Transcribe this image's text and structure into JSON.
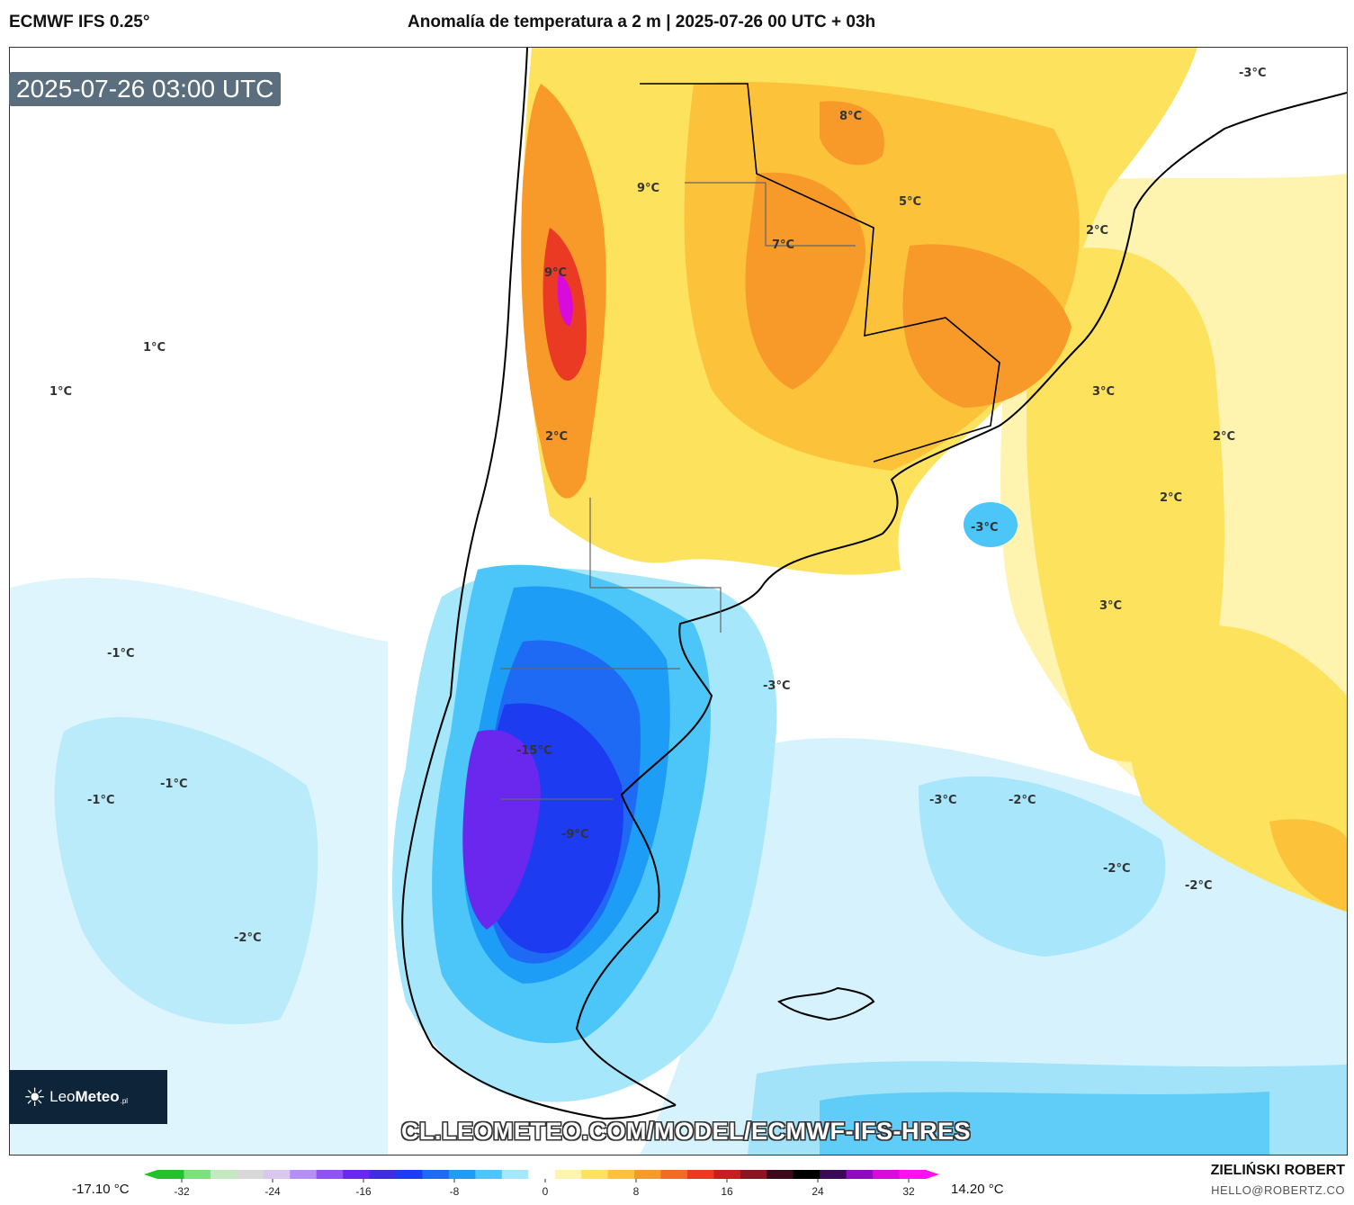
{
  "header": {
    "model": "ECMWF IFS 0.25°",
    "title": "Anomalía de temperatura a 2 m | 2025-07-26 00 UTC + 03h"
  },
  "map": {
    "valid_time": "2025-07-26 03:00 UTC",
    "labels": [
      "8°C",
      "9°C",
      "5°C",
      "7°C",
      "2°C",
      "9°C",
      "1°C",
      "1°C",
      "3°C",
      "2°C",
      "2°C",
      "2°C",
      "-3°C",
      "-3°C",
      "3°C",
      "-1°C",
      "-3°C",
      "-15°C",
      "-1°C",
      "-1°C",
      "-3°C",
      "-2°C",
      "-9°C",
      "-2°C",
      "-2°C",
      "-2°C"
    ]
  },
  "watermark": {
    "url": "CL.LEOMETEO.COM/MODEL/ECMWF-IFS-HRES",
    "logo_text_light": "Leo",
    "logo_text_bold": "Meteo",
    "logo_tld": ".pl"
  },
  "colorbar": {
    "min_label": "-17.10 °C",
    "max_label": "14.20 °C",
    "ticks": [
      "-32",
      "-24",
      "-16",
      "-8",
      "0",
      "8",
      "16",
      "24",
      "32"
    ],
    "colors": [
      "#22c22a",
      "#7ee07d",
      "#c4e8c0",
      "#d8d8d8",
      "#d9c8ee",
      "#b690f0",
      "#8f52f5",
      "#6a28ef",
      "#3f2de0",
      "#1d3bf0",
      "#1f6af4",
      "#1e9df7",
      "#4cc6f8",
      "#a6e7fb",
      "#ffffff",
      "#fff3b0",
      "#fde25e",
      "#fbc23a",
      "#f89a2a",
      "#f46a22",
      "#ea3a24",
      "#c81e22",
      "#8c1522",
      "#3a0a1a",
      "#000000",
      "#3a0a55",
      "#8f0ac0",
      "#d80ade",
      "#ff10f0"
    ]
  },
  "credit": {
    "author": "ZIELIŃSKI ROBERT",
    "email": "HELLO@ROBERTZ.CO"
  }
}
